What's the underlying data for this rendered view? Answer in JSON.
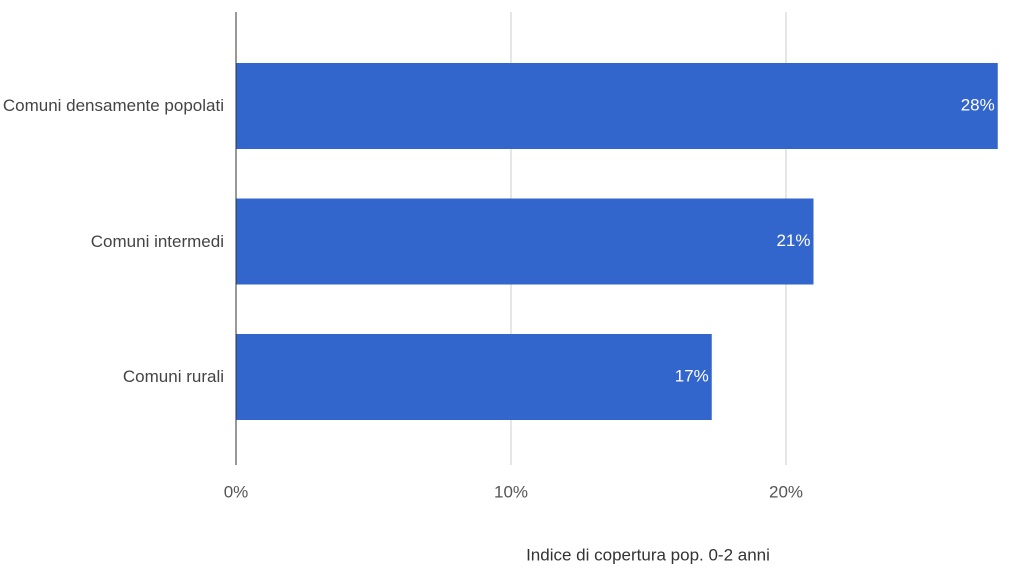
{
  "chart_data": {
    "type": "bar",
    "orientation": "horizontal",
    "x_label": "Indice di copertura pop. 0-2 anni",
    "categories": [
      "Comuni densamente popolati",
      "Comuni intermedi",
      "Comuni rurali"
    ],
    "values": [
      27.7,
      21.0,
      17.3
    ],
    "value_labels": [
      "28%",
      "21%",
      "17%"
    ],
    "color": "#3366cc",
    "xlim": [
      0,
      27.8
    ],
    "xticks": [
      {
        "value": 0,
        "label": "0%"
      },
      {
        "value": 10,
        "label": "10%"
      },
      {
        "value": 20,
        "label": "20%"
      }
    ],
    "grid": true
  }
}
